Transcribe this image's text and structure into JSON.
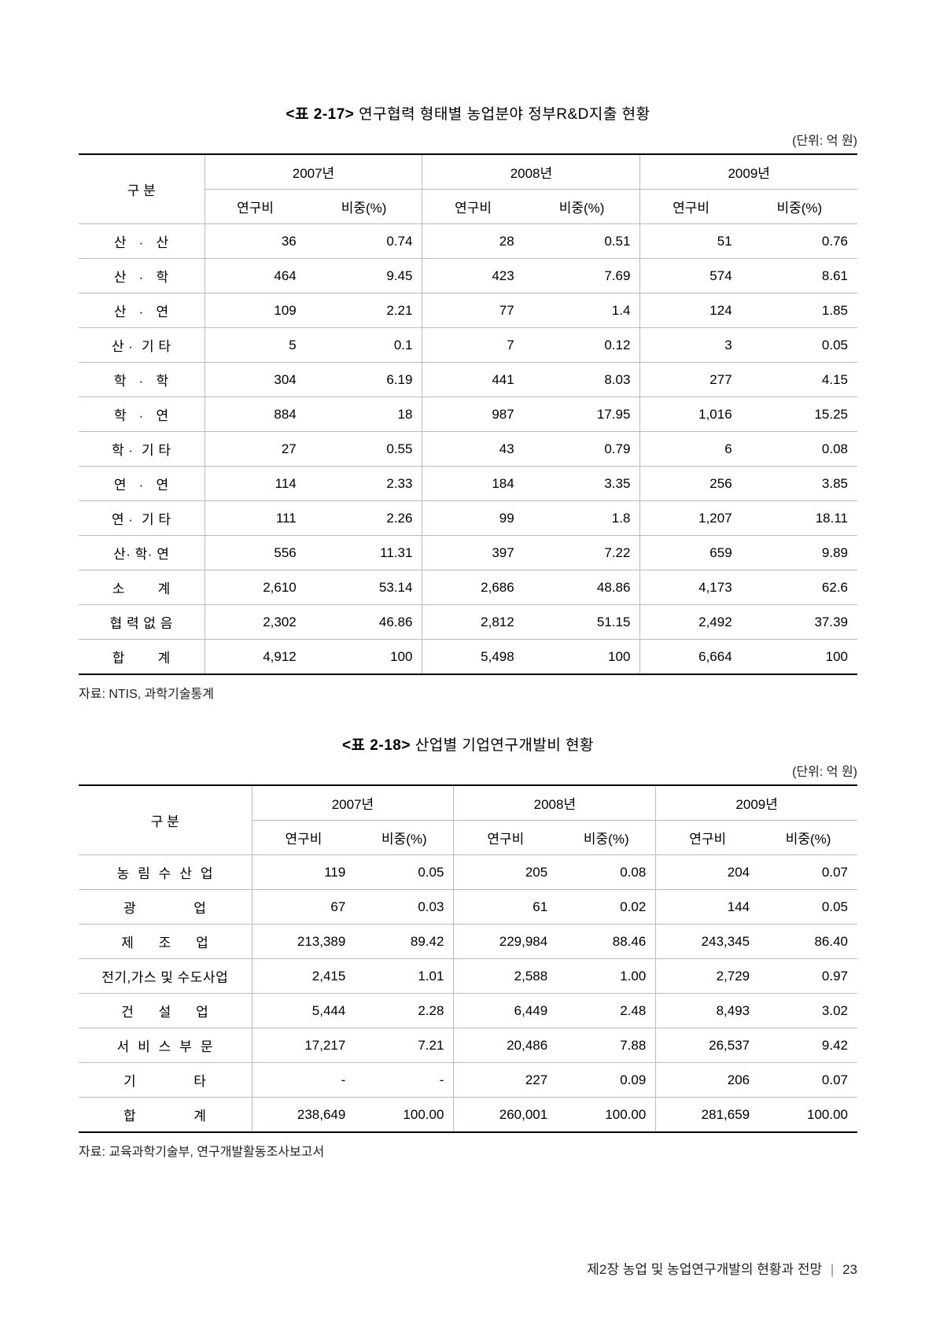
{
  "table1": {
    "title_prefix": "<표 2-17>",
    "title_text": " 연구협력 형태별 농업분야 정부R&D지출 현황",
    "unit": "(단위: 억 원)",
    "cat_header": "구  분",
    "years": [
      "2007년",
      "2008년",
      "2009년"
    ],
    "sub_headers": [
      "연구비",
      "비중(%)"
    ],
    "rows": [
      {
        "cat": "산   ·   산",
        "v": [
          "36",
          "0.74",
          "28",
          "0.51",
          "51",
          "0.76"
        ]
      },
      {
        "cat": "산   ·   학",
        "v": [
          "464",
          "9.45",
          "423",
          "7.69",
          "574",
          "8.61"
        ]
      },
      {
        "cat": "산   ·   연",
        "v": [
          "109",
          "2.21",
          "77",
          "1.4",
          "124",
          "1.85"
        ]
      },
      {
        "cat": "산 ·  기 타",
        "v": [
          "5",
          "0.1",
          "7",
          "0.12",
          "3",
          "0.05"
        ]
      },
      {
        "cat": "학   ·   학",
        "v": [
          "304",
          "6.19",
          "441",
          "8.03",
          "277",
          "4.15"
        ]
      },
      {
        "cat": "학   ·   연",
        "v": [
          "884",
          "18",
          "987",
          "17.95",
          "1,016",
          "15.25"
        ]
      },
      {
        "cat": "학 ·  기 타",
        "v": [
          "27",
          "0.55",
          "43",
          "0.79",
          "6",
          "0.08"
        ]
      },
      {
        "cat": "연   ·   연",
        "v": [
          "114",
          "2.33",
          "184",
          "3.35",
          "256",
          "3.85"
        ]
      },
      {
        "cat": "연 ·  기 타",
        "v": [
          "111",
          "2.26",
          "99",
          "1.8",
          "1,207",
          "18.11"
        ]
      },
      {
        "cat": "산· 학· 연",
        "v": [
          "556",
          "11.31",
          "397",
          "7.22",
          "659",
          "9.89"
        ]
      },
      {
        "cat": "소        계",
        "v": [
          "2,610",
          "53.14",
          "2,686",
          "48.86",
          "4,173",
          "62.6"
        ]
      },
      {
        "cat": "협 력 없 음",
        "v": [
          "2,302",
          "46.86",
          "2,812",
          "51.15",
          "2,492",
          "37.39"
        ]
      },
      {
        "cat": "합        계",
        "v": [
          "4,912",
          "100",
          "5,498",
          "100",
          "6,664",
          "100"
        ]
      }
    ],
    "source": "자료: NTIS, 과학기술통계"
  },
  "table2": {
    "title_prefix": "<표 2-18>",
    "title_text": " 산업별 기업연구개발비 현황",
    "unit": "(단위: 억 원)",
    "cat_header": "구  분",
    "years": [
      "2007년",
      "2008년",
      "2009년"
    ],
    "sub_headers": [
      "연구비",
      "비중(%)"
    ],
    "rows": [
      {
        "cat": "농  림  수  산  업",
        "v": [
          "119",
          "0.05",
          "205",
          "0.08",
          "204",
          "0.07"
        ]
      },
      {
        "cat": "광              업",
        "v": [
          "67",
          "0.03",
          "61",
          "0.02",
          "144",
          "0.05"
        ]
      },
      {
        "cat": "제      조      업",
        "v": [
          "213,389",
          "89.42",
          "229,984",
          "88.46",
          "243,345",
          "86.40"
        ]
      },
      {
        "cat": "전기,가스 및 수도사업",
        "v": [
          "2,415",
          "1.01",
          "2,588",
          "1.00",
          "2,729",
          "0.97"
        ]
      },
      {
        "cat": "건      설      업",
        "v": [
          "5,444",
          "2.28",
          "6,449",
          "2.48",
          "8,493",
          "3.02"
        ]
      },
      {
        "cat": "서  비  스  부  문",
        "v": [
          "17,217",
          "7.21",
          "20,486",
          "7.88",
          "26,537",
          "9.42"
        ]
      },
      {
        "cat": "기              타",
        "v": [
          "-",
          "-",
          "227",
          "0.09",
          "206",
          "0.07"
        ]
      },
      {
        "cat": "합              계",
        "v": [
          "238,649",
          "100.00",
          "260,001",
          "100.00",
          "281,659",
          "100.00"
        ]
      }
    ],
    "source": "자료: 교육과학기술부, 연구개발활동조사보고서"
  },
  "footer": {
    "chapter": "제2장 농업 및 농업연구개발의 현황과 전망",
    "page": "23"
  }
}
